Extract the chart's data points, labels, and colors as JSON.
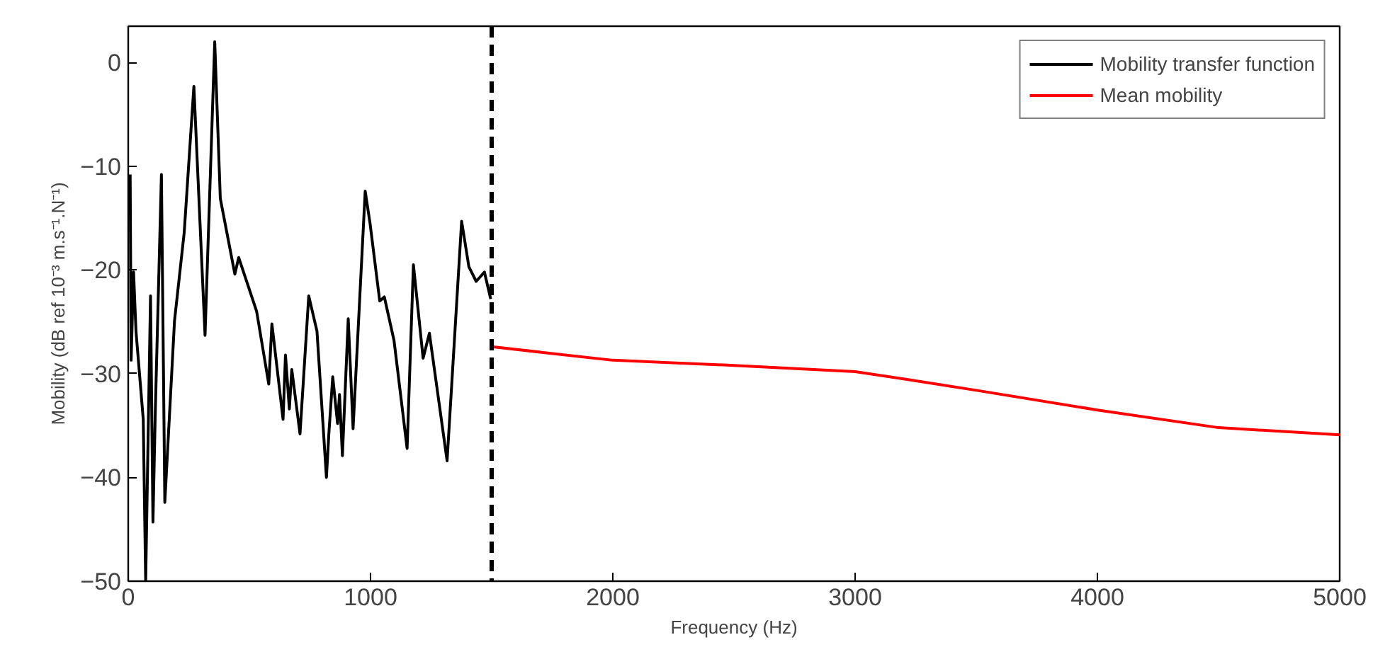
{
  "chart_data": {
    "type": "line",
    "xlabel": "Frequency (Hz)",
    "ylabel": "Mobility (dB ref 10⁻³ m.s⁻¹.N⁻¹)",
    "xlim": [
      0,
      5000
    ],
    "ylim": [
      -50,
      3.5
    ],
    "xticks": [
      0,
      1000,
      2000,
      3000,
      4000,
      5000
    ],
    "yticks": [
      -50,
      -40,
      -30,
      -20,
      -10,
      0
    ],
    "grid": false,
    "legend": "top right",
    "line_style": "solid",
    "series": [
      {
        "name": "Mobility transfer function",
        "color": "#000000",
        "x": [
          8,
          12,
          22,
          32,
          62,
          72,
          92,
          102,
          112,
          137,
          151,
          191,
          231,
          271,
          317,
          357,
          380,
          440,
          456,
          530,
          580,
          593,
          639,
          649,
          665,
          675,
          709,
          745,
          779,
          818,
          828,
          844,
          864,
          872,
          884,
          908,
          928,
          978,
          998,
          1038,
          1057,
          1097,
          1151,
          1177,
          1217,
          1243,
          1316,
          1376,
          1406,
          1436,
          1470,
          1496
        ],
        "values": [
          -10.8,
          -28.7,
          -20.2,
          -25.9,
          -34.4,
          -50,
          -22.5,
          -44.3,
          -33.4,
          -10.8,
          -42.4,
          -24.9,
          -16.4,
          -2.3,
          -26.3,
          2.0,
          -13.1,
          -20.4,
          -18.8,
          -24,
          -31,
          -25.2,
          -34.4,
          -28.2,
          -33.4,
          -29.6,
          -35.8,
          -22.5,
          -25.9,
          -40,
          -35.8,
          -30.3,
          -34.8,
          -32,
          -37.9,
          -24.7,
          -35.3,
          -12.4,
          -15.5,
          -23,
          -22.6,
          -26.8,
          -37.2,
          -19.5,
          -28.5,
          -26.1,
          -38.4,
          -15.3,
          -19.7,
          -21.1,
          -20.2,
          -22.8
        ]
      },
      {
        "name": "Mean mobility",
        "color": "#ff0000",
        "x": [
          1500,
          2000,
          2500,
          3000,
          3200,
          3500,
          4000,
          4500,
          5000
        ],
        "values": [
          -27.4,
          -28.7,
          -29.2,
          -29.8,
          -30.5,
          -31.6,
          -33.5,
          -35.2,
          -35.9
        ]
      }
    ],
    "ref_lines": [
      {
        "axis": "x",
        "value": 1500,
        "color": "#000000",
        "line_style": "dashed"
      }
    ]
  }
}
